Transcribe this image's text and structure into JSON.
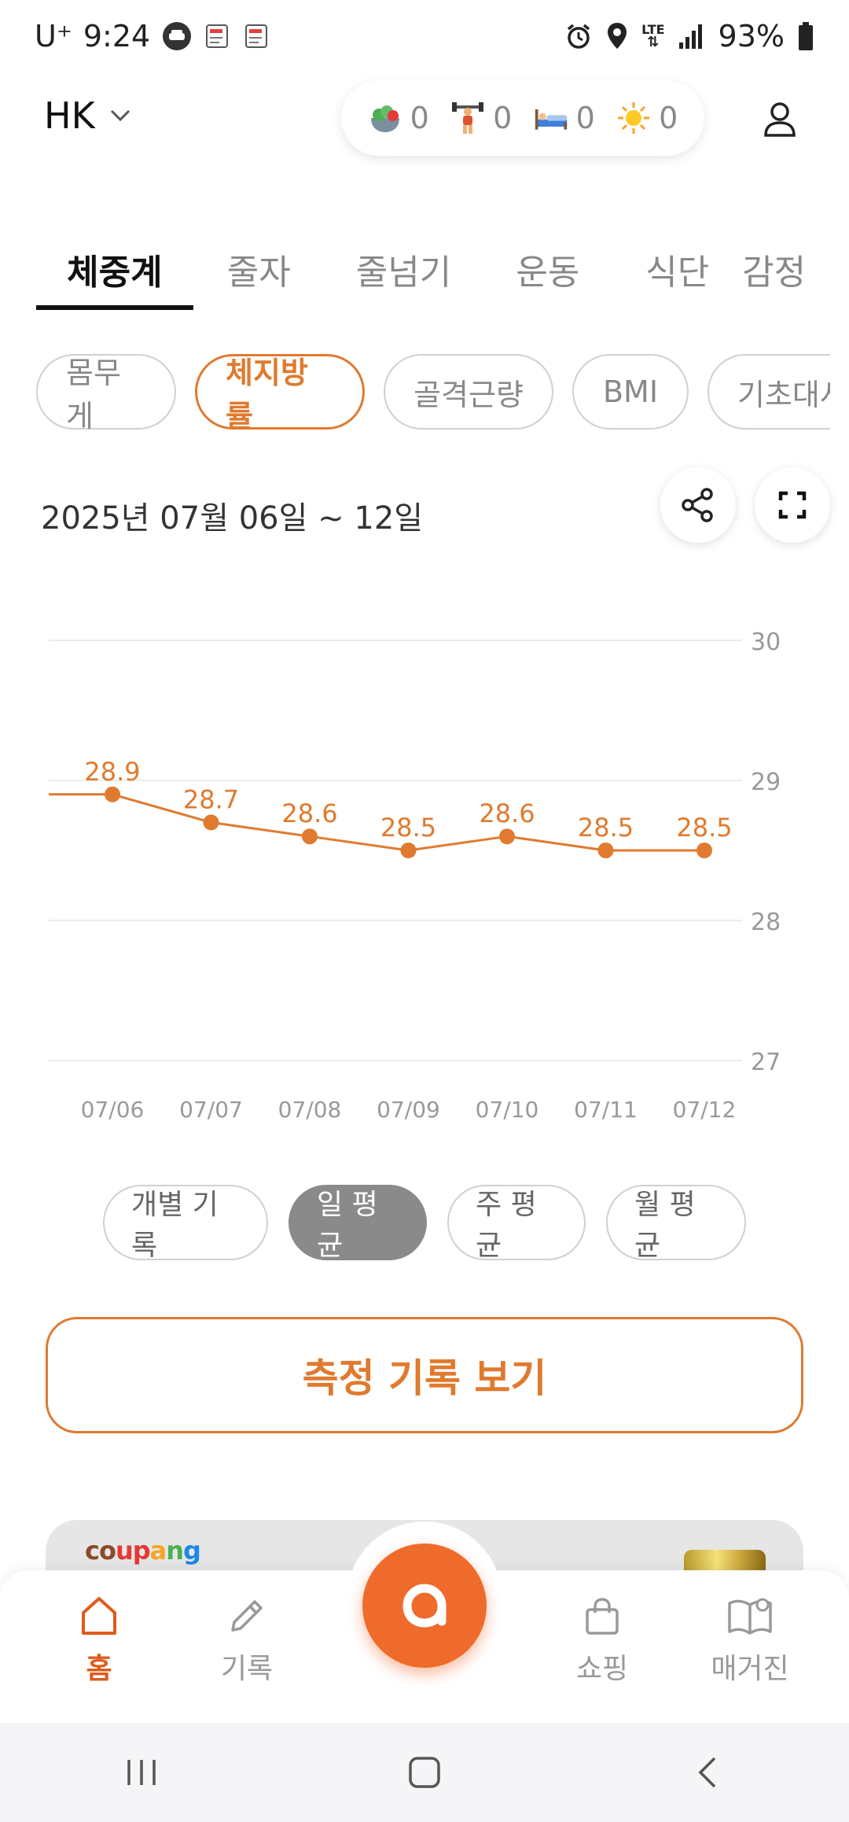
{
  "status_bar": {
    "carrier": "U⁺",
    "time": "9:24",
    "network": "LTE",
    "battery": "93%"
  },
  "header": {
    "profile_name": "HK",
    "counters": [
      {
        "icon": "salad-icon",
        "value": "0"
      },
      {
        "icon": "weightlifter-icon",
        "value": "0"
      },
      {
        "icon": "bed-icon",
        "value": "0"
      },
      {
        "icon": "sun-icon",
        "value": "0"
      }
    ]
  },
  "main_tabs": [
    {
      "label": "체중계",
      "active": true
    },
    {
      "label": "줄자",
      "active": false
    },
    {
      "label": "줄넘기",
      "active": false
    },
    {
      "label": "운동",
      "active": false
    },
    {
      "label": "식단",
      "active": false
    },
    {
      "label": "감정",
      "active": false
    }
  ],
  "metric_chips": [
    {
      "label": "몸무게",
      "active": false
    },
    {
      "label": "체지방률",
      "active": true
    },
    {
      "label": "골격근량",
      "active": false
    },
    {
      "label": "BMI",
      "active": false
    },
    {
      "label": "기초대사",
      "active": false
    }
  ],
  "date_range": "2025년 07월 06일 ~ 12일",
  "chart_data": {
    "type": "line",
    "categories": [
      "07/06",
      "07/07",
      "07/08",
      "07/09",
      "07/10",
      "07/11",
      "07/12"
    ],
    "values": [
      28.9,
      28.7,
      28.6,
      28.5,
      28.6,
      28.5,
      28.5
    ],
    "data_labels": [
      "28.9",
      "28.7",
      "28.6",
      "28.5",
      "28.6",
      "28.5",
      "28.5"
    ],
    "y_ticks": [
      "30",
      "29",
      "28",
      "27"
    ],
    "ylim": [
      27,
      30
    ],
    "y_axis_position": "right",
    "grid": true,
    "color": "#e07a2e"
  },
  "aggregation_tabs": [
    {
      "label": "개별 기록",
      "active": false
    },
    {
      "label": "일 평균",
      "active": true
    },
    {
      "label": "주 평균",
      "active": false
    },
    {
      "label": "월 평균",
      "active": false
    }
  ],
  "record_button_label": "측정 기록 보기",
  "ad": {
    "logo": "coupang"
  },
  "bottom_nav": [
    {
      "label": "홈",
      "icon": "home-icon",
      "active": true
    },
    {
      "label": "기록",
      "icon": "pencil-icon",
      "active": false
    },
    {
      "label": "쇼핑",
      "icon": "shopping-bag-icon",
      "active": false
    },
    {
      "label": "매거진",
      "icon": "magazine-icon",
      "active": false
    }
  ],
  "colors": {
    "accent": "#e07a2e",
    "center_button": "#ef6b2c"
  }
}
